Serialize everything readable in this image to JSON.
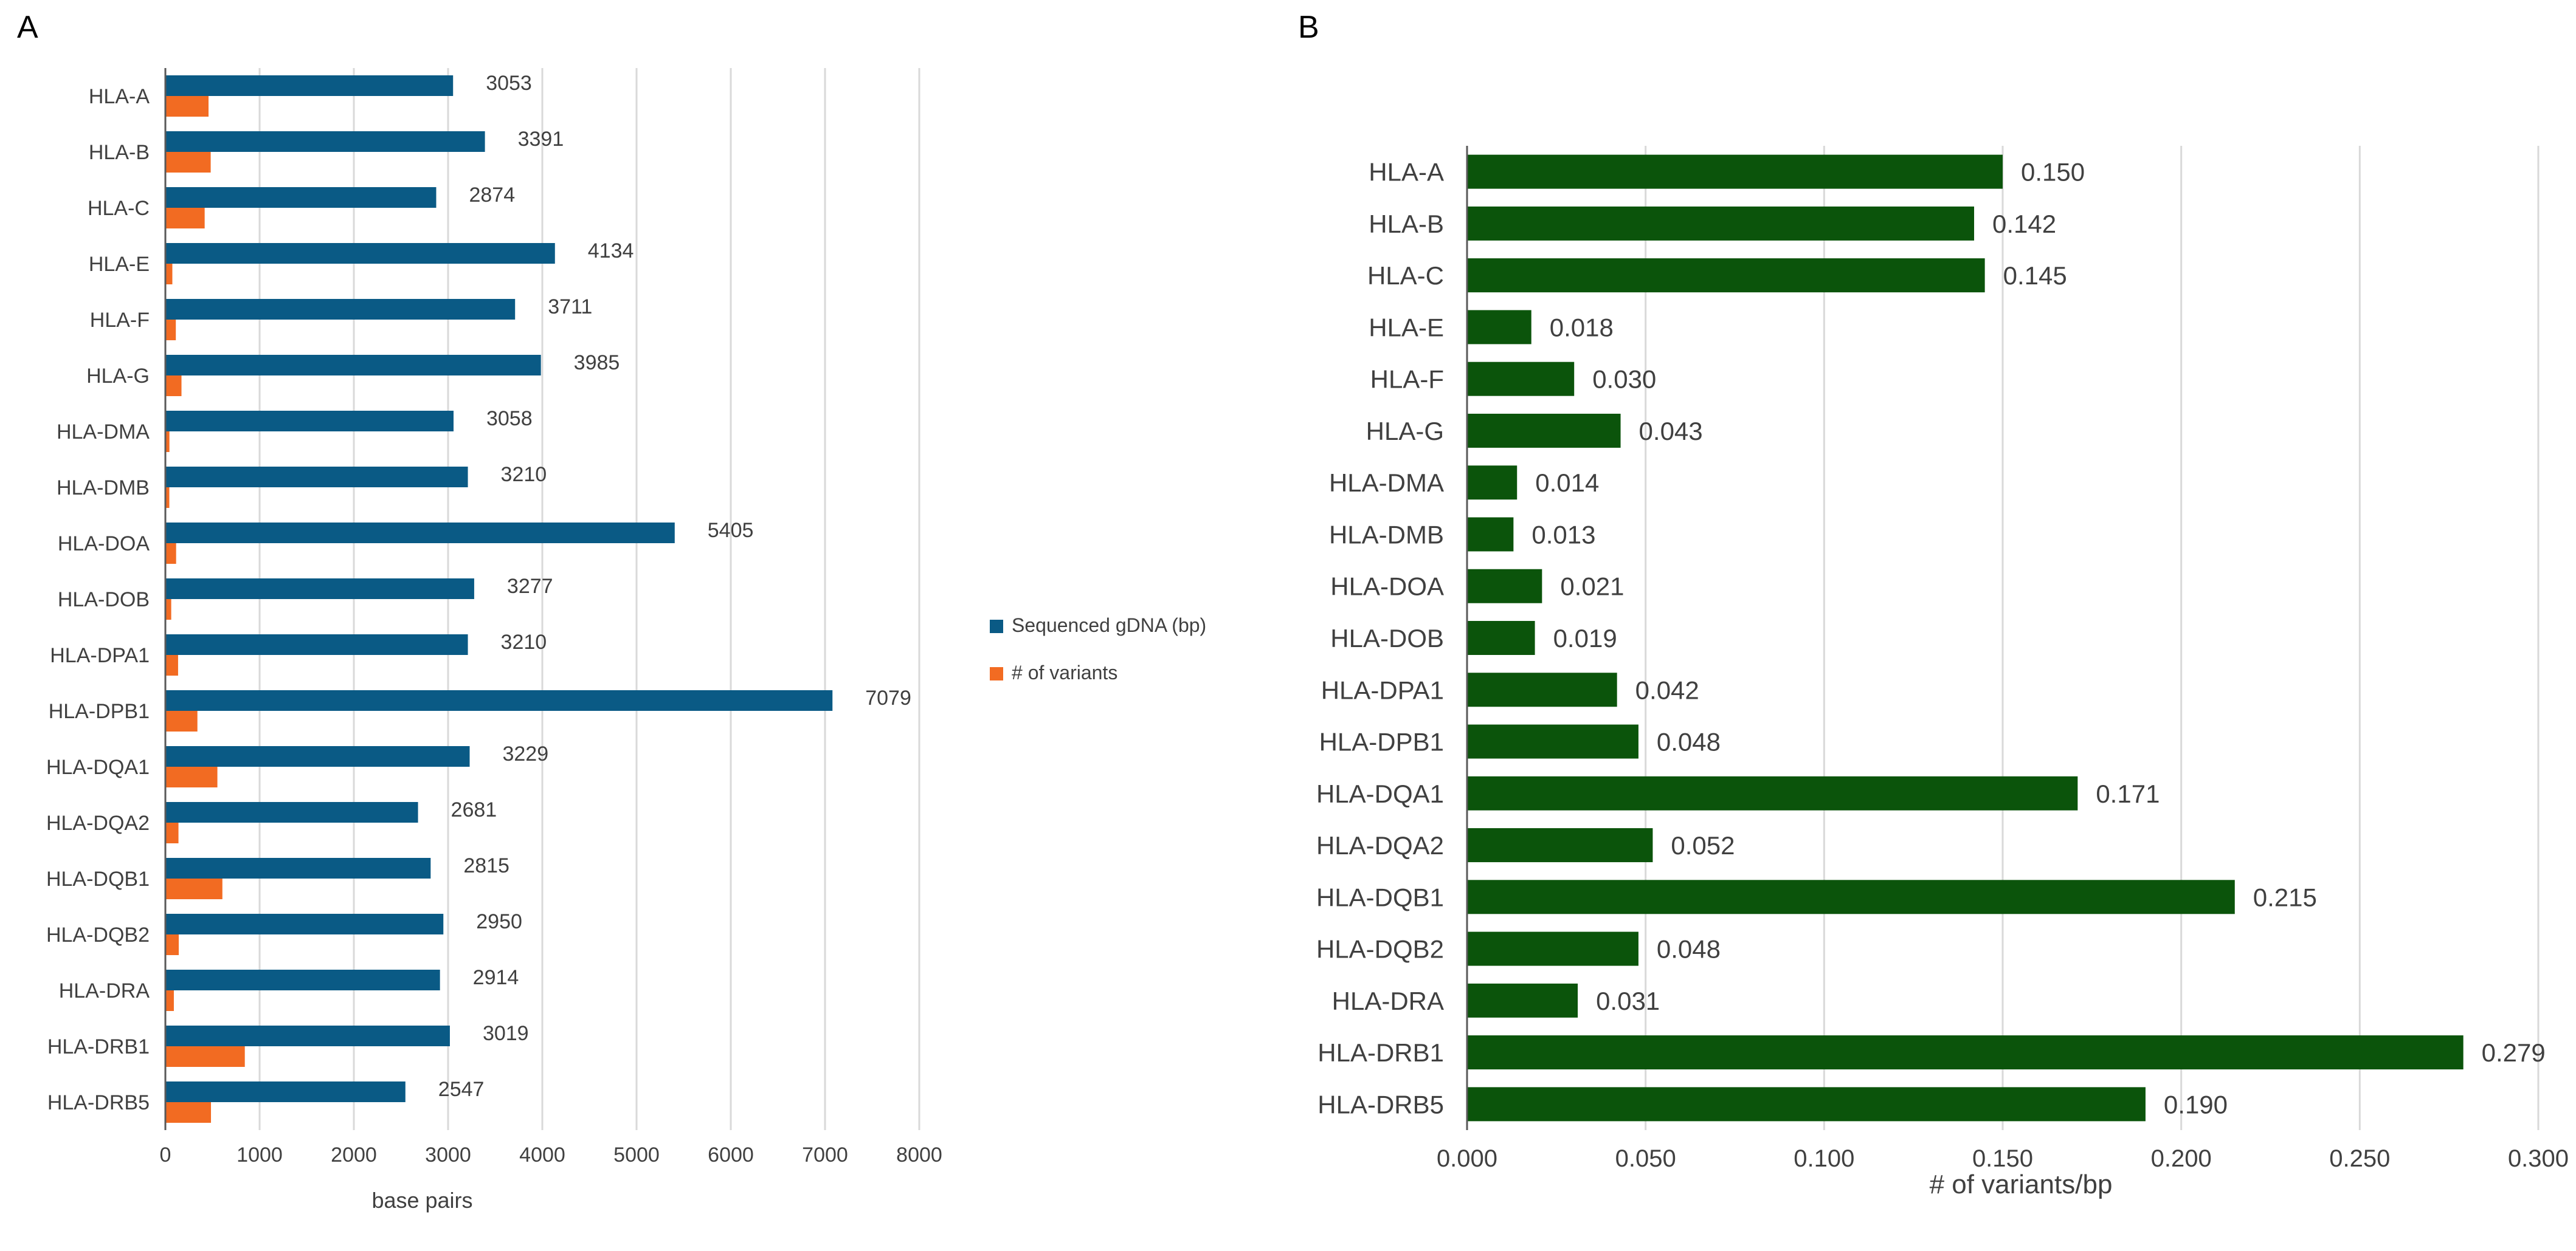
{
  "panels": {
    "a_label": "A",
    "b_label": "B"
  },
  "colors": {
    "series_gdna": "#0a5a85",
    "series_variants": "#f26b22",
    "panel_b_bars": "#0b540b"
  },
  "chart_data": [
    {
      "type": "bar",
      "orientation": "horizontal",
      "panel": "A",
      "title": "",
      "categories": [
        "HLA-A",
        "HLA-B",
        "HLA-C",
        "HLA-E",
        "HLA-F",
        "HLA-G",
        "HLA-DMA",
        "HLA-DMB",
        "HLA-DOA",
        "HLA-DOB",
        "HLA-DPA1",
        "HLA-DPB1",
        "HLA-DQA1",
        "HLA-DQA2",
        "HLA-DQB1",
        "HLA-DQB2",
        "HLA-DRA",
        "HLA-DRB1",
        "HLA-DRB5"
      ],
      "series": [
        {
          "name": "Sequenced gDNA (bp)",
          "values": [
            3053,
            3391,
            2874,
            4134,
            3711,
            3985,
            3058,
            3210,
            5405,
            3277,
            3210,
            7079,
            3229,
            2681,
            2815,
            2950,
            2914,
            3019,
            2547
          ],
          "labels": [
            "3053",
            "3391",
            "2874",
            "4134",
            "3711",
            "3985",
            "3058",
            "3210",
            "5405",
            "3277",
            "3210",
            "7079",
            "3229",
            "2681",
            "2815",
            "2950",
            "2914",
            "3019",
            "2547"
          ]
        },
        {
          "name": "# of variants",
          "values": [
            458,
            481,
            417,
            74,
            111,
            171,
            43,
            42,
            114,
            62,
            135,
            340,
            552,
            139,
            605,
            142,
            90,
            843,
            484
          ]
        }
      ],
      "xlabel": "base pairs",
      "ylabel": "",
      "xlim": [
        0,
        8000
      ],
      "xticks": [
        0,
        1000,
        2000,
        3000,
        4000,
        5000,
        6000,
        7000,
        8000
      ],
      "xtick_labels": [
        "0",
        "1000",
        "2000",
        "3000",
        "4000",
        "5000",
        "6000",
        "7000",
        "8000"
      ],
      "grid": true,
      "legend": "right"
    },
    {
      "type": "bar",
      "orientation": "horizontal",
      "panel": "B",
      "title": "",
      "categories": [
        "HLA-A",
        "HLA-B",
        "HLA-C",
        "HLA-E",
        "HLA-F",
        "HLA-G",
        "HLA-DMA",
        "HLA-DMB",
        "HLA-DOA",
        "HLA-DOB",
        "HLA-DPA1",
        "HLA-DPB1",
        "HLA-DQA1",
        "HLA-DQA2",
        "HLA-DQB1",
        "HLA-DQB2",
        "HLA-DRA",
        "HLA-DRB1",
        "HLA-DRB5"
      ],
      "values": [
        0.15,
        0.142,
        0.145,
        0.018,
        0.03,
        0.043,
        0.014,
        0.013,
        0.021,
        0.019,
        0.042,
        0.048,
        0.171,
        0.052,
        0.215,
        0.048,
        0.031,
        0.279,
        0.19
      ],
      "labels": [
        "0.150",
        "0.142",
        "0.145",
        "0.018",
        "0.030",
        "0.043",
        "0.014",
        "0.013",
        "0.021",
        "0.019",
        "0.042",
        "0.048",
        "0.171",
        "0.052",
        "0.215",
        "0.048",
        "0.031",
        "0.279",
        "0.190"
      ],
      "xlabel": "# of variants/bp",
      "ylabel": "",
      "xlim": [
        0,
        0.3
      ],
      "xticks": [
        0,
        0.05,
        0.1,
        0.15,
        0.2,
        0.25,
        0.3
      ],
      "xtick_labels": [
        "0.000",
        "0.050",
        "0.100",
        "0.150",
        "0.200",
        "0.250",
        "0.300"
      ],
      "grid": true,
      "legend": "none"
    }
  ]
}
